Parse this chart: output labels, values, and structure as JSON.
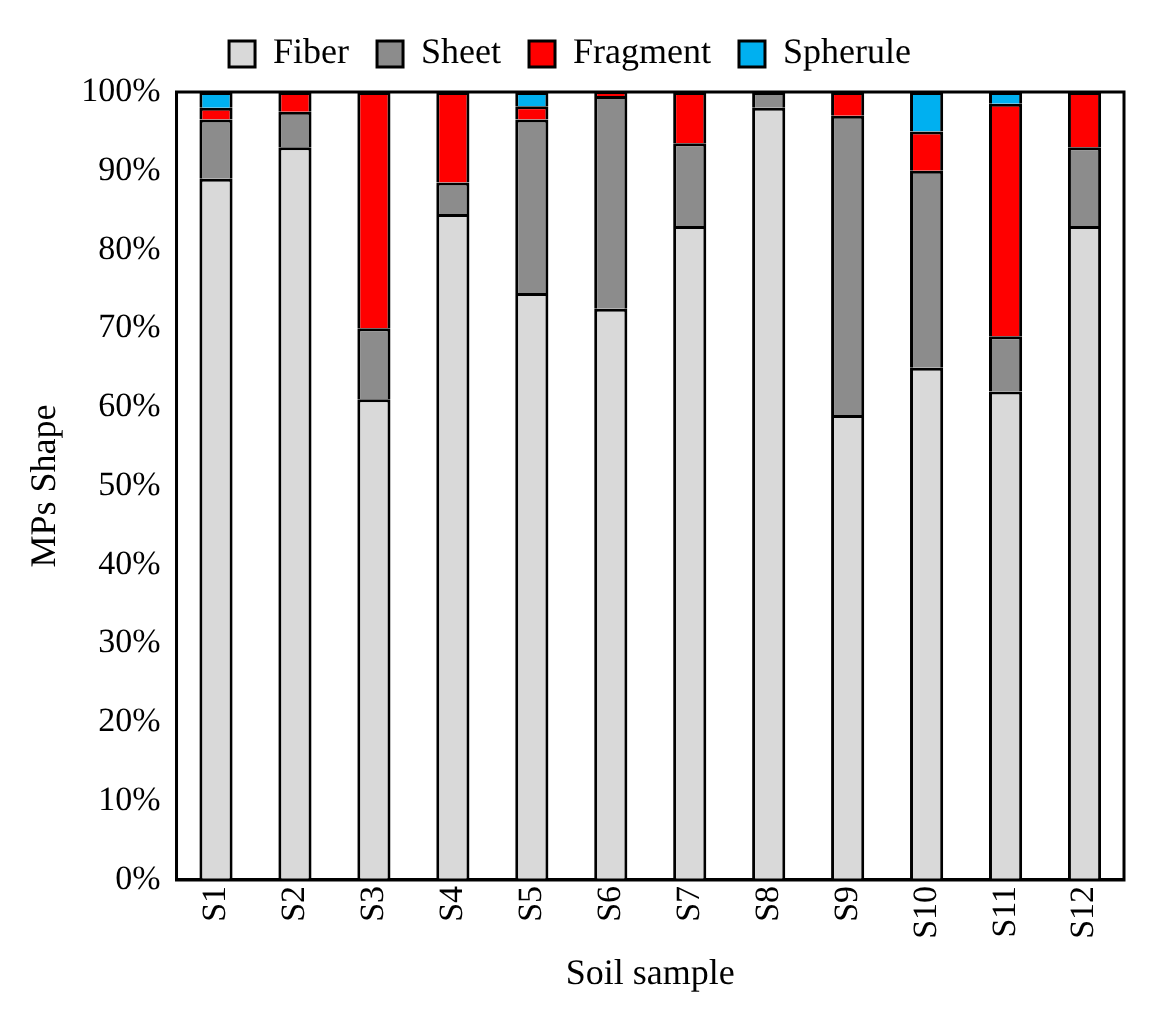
{
  "chart_data": {
    "type": "bar",
    "stacked": true,
    "xlabel": "Soil sample",
    "ylabel": "MPs Shape",
    "categories": [
      "S1",
      "S2",
      "S3",
      "S4",
      "S5",
      "S6",
      "S7",
      "S8",
      "S9",
      "S10",
      "S11",
      "S12"
    ],
    "series": [
      {
        "name": "Fiber",
        "color": "#d9d9d9",
        "values": [
          89,
          93,
          61,
          84.5,
          74.5,
          72.5,
          83,
          98,
          59,
          65,
          62,
          83
        ]
      },
      {
        "name": "Sheet",
        "color": "#8c8c8c",
        "values": [
          7.5,
          4.5,
          9,
          4,
          22,
          27,
          10.5,
          2,
          38,
          25,
          7,
          10
        ]
      },
      {
        "name": "Fragment",
        "color": "#ff0000",
        "values": [
          1.5,
          2.5,
          30,
          11.5,
          1.7,
          0.5,
          6.5,
          0,
          3,
          5,
          29.5,
          7
        ]
      },
      {
        "name": "Spherule",
        "color": "#00b0f0",
        "values": [
          2,
          0,
          0,
          0,
          1.8,
          0,
          0,
          0,
          0,
          5,
          1.5,
          0
        ]
      }
    ],
    "ylim": [
      0,
      100
    ],
    "yticks": [
      {
        "value": 0,
        "label": "0%"
      },
      {
        "value": 10,
        "label": "10%"
      },
      {
        "value": 20,
        "label": "20%"
      },
      {
        "value": 30,
        "label": "30%"
      },
      {
        "value": 40,
        "label": "40%"
      },
      {
        "value": 50,
        "label": "50%"
      },
      {
        "value": 60,
        "label": "60%"
      },
      {
        "value": 70,
        "label": "70%"
      },
      {
        "value": 80,
        "label": "80%"
      },
      {
        "value": 90,
        "label": "90%"
      },
      {
        "value": 100,
        "label": "100%"
      }
    ],
    "grid": false,
    "legend": "top"
  }
}
